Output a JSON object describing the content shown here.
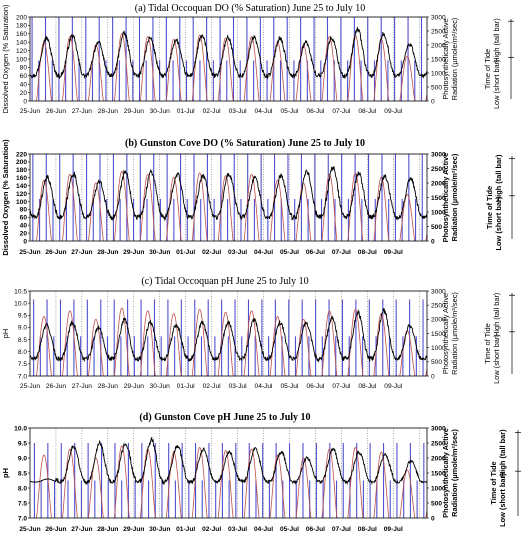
{
  "figure": {
    "panels": [
      {
        "id": "a",
        "style": "normal",
        "chart_data": {
          "type": "line",
          "title": "(a)  Tidal Occoquan DO (% Saturation) June 25 to July 10",
          "ylabel": "Dissolved Oxygen (% Saturation)",
          "y2label_line1": "Photosynthetically Active",
          "y2label_line2": "Radiation (µmole/m²/sec)",
          "y3label_line1": "Time of Tide",
          "y3label_high": "High (tall bar)",
          "y3label_low": "Low (short bar)",
          "ylim": [
            0,
            200
          ],
          "yticks": [
            "0",
            "20",
            "40",
            "60",
            "80",
            "100",
            "120",
            "140",
            "160",
            "180",
            "200"
          ],
          "y2lim": [
            0,
            3000
          ],
          "y2ticks": [
            "0",
            "500",
            "1000",
            "1500",
            "2000",
            "2500",
            "3000"
          ],
          "x_categories": [
            "25-Jun",
            "26-Jun",
            "27-Jun",
            "28-Jun",
            "29-Jun",
            "30-Jun",
            "01-Jul",
            "02-Jul",
            "03-Jul",
            "04-Jul",
            "05-Jul",
            "06-Jul",
            "07-Jul",
            "08-Jul",
            "09-Jul"
          ],
          "series": [
            {
              "kind": "par",
              "color": "#c0504d",
              "day_peak": [
                2100,
                2300,
                2000,
                2400,
                2300,
                2200,
                2350,
                2250,
                2300,
                2100,
                2000,
                2300,
                2350,
                2200,
                1600,
                1300
              ]
            },
            {
              "kind": "oxygen",
              "color": "#000000",
              "y_range": [
                60,
                160
              ],
              "phase": 0.15,
              "day_peak": [
                150,
                155,
                140,
                160,
                150,
                145,
                155,
                150,
                152,
                150,
                140,
                150,
                170,
                160,
                135,
                115
              ]
            },
            {
              "kind": "tide",
              "color": "#5050d0",
              "high_y2": 3000,
              "low_y2": 1450
            }
          ],
          "grid": "vertical-dotted-daily"
        }
      },
      {
        "id": "b",
        "style": "bold",
        "chart_data": {
          "type": "line",
          "title": "(b)  Gunston Cove DO (% Saturation) June 25 to July 10",
          "ylabel": "Dissolved Oxygen (% Saturation)",
          "y2label_line1": "Photosynthetically Active",
          "y2label_line2": "Radiation (µmole/m²/sec)",
          "y3label_line1": "Time of Tide",
          "y3label_high": "High (tall bar)",
          "y3label_low": "Low (short bar)",
          "ylim": [
            0,
            220
          ],
          "yticks": [
            "0",
            "20",
            "40",
            "60",
            "80",
            "100",
            "120",
            "140",
            "160",
            "180",
            "200",
            "220"
          ],
          "y2lim": [
            0,
            3000
          ],
          "y2ticks": [
            "0",
            "500",
            "1000",
            "1500",
            "2000",
            "2500",
            "3000"
          ],
          "x_categories": [
            "25-Jun",
            "26-Jun",
            "27-Jun",
            "28-Jun",
            "29-Jun",
            "30-Jun",
            "01-Jul",
            "02-Jul",
            "03-Jul",
            "04-Jul",
            "05-Jul",
            "06-Jul",
            "07-Jul",
            "08-Jul",
            "09-Jul"
          ],
          "series": [
            {
              "kind": "par",
              "color": "#c0504d",
              "day_peak": [
                2100,
                2300,
                2000,
                2400,
                2300,
                2200,
                2350,
                2250,
                2300,
                2100,
                2000,
                2300,
                2350,
                2200,
                1600,
                1300
              ]
            },
            {
              "kind": "oxygen",
              "color": "#000000",
              "y_range": [
                60,
                175
              ],
              "phase": 0.35,
              "day_peak": [
                160,
                170,
                150,
                175,
                175,
                170,
                165,
                170,
                160,
                165,
                175,
                185,
                170,
                165,
                160,
                140
              ]
            },
            {
              "kind": "tide",
              "color": "#5050d0",
              "high_y2": 3000,
              "low_y2": 1450
            }
          ],
          "grid": "vertical-dotted-daily"
        }
      },
      {
        "id": "c",
        "style": "normal",
        "chart_data": {
          "type": "line",
          "title": "(c)  Tidal Occoquan pH June 25 to July 10",
          "ylabel": "pH",
          "y2label_line1": "Photosynthetically Active",
          "y2label_line2": "Radiation (µmole/m²/sec)",
          "y3label_line1": "Time of Tide",
          "y3label_high": "High (tall bar)",
          "y3label_low": "Low (short bar)",
          "ylim": [
            7.0,
            10.5
          ],
          "yticks": [
            "7.0",
            "7.5",
            "8.0",
            "8.5",
            "9.0",
            "9.5",
            "10.0",
            "10.5"
          ],
          "y2lim": [
            0,
            3000
          ],
          "y2ticks": [
            "0",
            "500",
            "1000",
            "1500",
            "2000",
            "2500",
            "3000"
          ],
          "x_categories": [
            "25-Jun",
            "26-Jun",
            "27-Jun",
            "28-Jun",
            "29-Jun",
            "30-Jun",
            "01-Jul",
            "02-Jul",
            "03-Jul",
            "04-Jul",
            "05-Jul",
            "06-Jul",
            "07-Jul",
            "08-Jul",
            "09-Jul"
          ],
          "series": [
            {
              "kind": "par",
              "color": "#c0504d",
              "day_peak": [
                2100,
                2300,
                2000,
                2400,
                2300,
                2200,
                2350,
                2250,
                2300,
                2100,
                2000,
                2300,
                2350,
                2200,
                1600,
                1300
              ]
            },
            {
              "kind": "ph",
              "color": "#000000",
              "y_range": [
                7.7,
                9.3
              ],
              "phase": 0.2,
              "day_peak": [
                9.1,
                9.2,
                9.0,
                9.3,
                9.2,
                9.1,
                9.2,
                9.2,
                9.3,
                9.2,
                9.2,
                9.4,
                9.6,
                9.7,
                9.1,
                8.8
              ]
            },
            {
              "kind": "tide",
              "color": "#5050d0",
              "high_y2": 2700,
              "low_y2": 1400
            }
          ],
          "grid": "vertical-dotted-daily"
        }
      },
      {
        "id": "d",
        "style": "bold",
        "chart_data": {
          "type": "line",
          "title": "(d)  Gunston Cove pH June 25 to July 10",
          "ylabel": "pH",
          "y2label_line1": "Photosynthetically Active",
          "y2label_line2": "Radiation (µmole/m²/sec)",
          "y3label_line1": "Time of Tide",
          "y3label_high": "High (tall bar)",
          "y3label_low": "Low (short bar)",
          "ylim": [
            7.0,
            10.0
          ],
          "yticks": [
            "7.0",
            "7.5",
            "8.0",
            "8.5",
            "9.0",
            "9.5",
            "10.0"
          ],
          "y2lim": [
            0,
            3000
          ],
          "y2ticks": [
            "0",
            "500",
            "1000",
            "1500",
            "2000",
            "2500",
            "3000"
          ],
          "x_categories": [
            "25-Jun",
            "26-Jun",
            "27-Jun",
            "28-Jun",
            "29-Jun",
            "30-Jun",
            "01-Jul",
            "02-Jul",
            "03-Jul",
            "04-Jul",
            "05-Jul",
            "06-Jul",
            "07-Jul",
            "08-Jul",
            "09-Jul"
          ],
          "series": [
            {
              "kind": "par",
              "color": "#c0504d",
              "day_peak": [
                2100,
                2300,
                2000,
                2400,
                2300,
                2200,
                2350,
                2250,
                2300,
                2100,
                2000,
                2300,
                2350,
                2200,
                1600,
                1300
              ]
            },
            {
              "kind": "ph",
              "color": "#000000",
              "y_range": [
                8.2,
                9.4
              ],
              "phase": 0.4,
              "day_peak": [
                8.3,
                9.4,
                9.5,
                9.5,
                9.6,
                9.4,
                9.3,
                9.2,
                9.3,
                9.2,
                9.0,
                9.3,
                9.2,
                9.1,
                8.9,
                8.6
              ]
            },
            {
              "kind": "tide",
              "color": "#5050d0",
              "high_y2": 2500,
              "low_y2": 1250
            }
          ],
          "grid": "vertical-dotted-daily"
        }
      }
    ]
  }
}
